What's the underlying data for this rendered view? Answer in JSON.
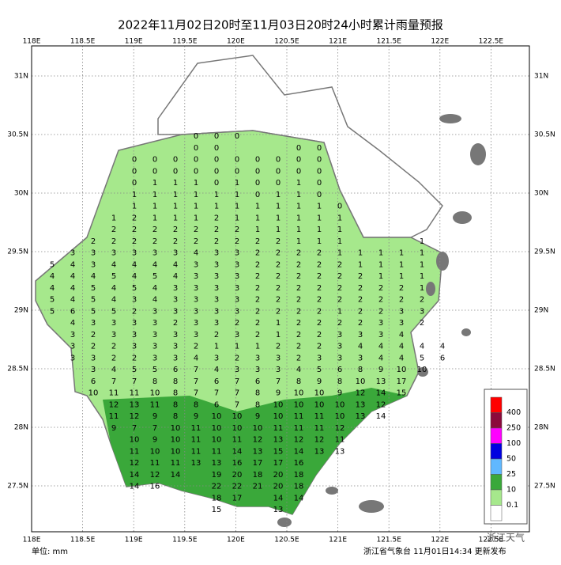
{
  "header": {
    "title": "2022年11月02日20时至11月03日20时24小时累计雨量预报"
  },
  "axes": {
    "lon": [
      "118E",
      "118.5E",
      "119E",
      "119.5E",
      "120E",
      "120.5E",
      "121E",
      "121.5E",
      "122E",
      "122.5E"
    ],
    "lat": [
      "31N",
      "30.5N",
      "30N",
      "29.5N",
      "29N",
      "28.5N",
      "28N",
      "27.5N"
    ]
  },
  "grid": {
    "rows": [
      [
        null,
        null,
        null,
        null,
        null,
        null,
        null,
        0,
        0,
        0
      ],
      [
        null,
        null,
        null,
        null,
        null,
        null,
        null,
        0,
        0,
        null,
        null,
        null,
        0,
        0
      ],
      [
        null,
        null,
        null,
        null,
        0,
        0,
        0,
        0,
        0,
        0,
        0,
        0,
        0,
        0
      ],
      [
        null,
        null,
        null,
        null,
        0,
        0,
        0,
        0,
        0,
        0,
        0,
        0,
        0,
        0
      ],
      [
        null,
        null,
        null,
        null,
        0,
        1,
        1,
        1,
        0,
        1,
        0,
        0,
        1,
        0
      ],
      [
        null,
        null,
        null,
        null,
        1,
        1,
        1,
        1,
        1,
        1,
        0,
        1,
        1,
        0
      ],
      [
        null,
        null,
        null,
        null,
        1,
        1,
        1,
        1,
        1,
        1,
        1,
        1,
        1,
        1,
        0
      ],
      [
        null,
        null,
        null,
        1,
        2,
        1,
        1,
        1,
        2,
        1,
        1,
        1,
        1,
        1,
        1
      ],
      [
        null,
        null,
        null,
        2,
        2,
        2,
        2,
        2,
        2,
        2,
        1,
        1,
        1,
        1,
        1
      ],
      [
        null,
        null,
        2,
        2,
        2,
        2,
        2,
        2,
        2,
        2,
        2,
        2,
        1,
        1,
        1,
        null,
        null,
        null,
        1
      ],
      [
        null,
        3,
        3,
        3,
        3,
        3,
        3,
        4,
        3,
        3,
        2,
        2,
        2,
        2,
        1,
        1,
        1,
        1,
        1
      ],
      [
        5,
        4,
        3,
        4,
        4,
        4,
        4,
        3,
        3,
        3,
        2,
        2,
        2,
        2,
        2,
        1,
        1,
        1,
        1
      ],
      [
        4,
        4,
        4,
        5,
        4,
        5,
        4,
        3,
        3,
        3,
        2,
        2,
        2,
        2,
        2,
        2,
        1,
        1,
        1
      ],
      [
        4,
        4,
        5,
        4,
        5,
        4,
        3,
        3,
        3,
        3,
        2,
        2,
        2,
        2,
        2,
        2,
        2,
        2,
        1
      ],
      [
        5,
        4,
        5,
        4,
        3,
        4,
        3,
        3,
        3,
        3,
        2,
        2,
        2,
        2,
        2,
        2,
        2,
        2,
        2
      ],
      [
        5,
        6,
        5,
        5,
        2,
        3,
        3,
        3,
        3,
        3,
        2,
        2,
        2,
        2,
        1,
        2,
        2,
        3,
        3
      ],
      [
        null,
        4,
        3,
        3,
        3,
        3,
        2,
        3,
        3,
        2,
        2,
        1,
        2,
        2,
        2,
        2,
        3,
        3,
        2
      ],
      [
        null,
        3,
        2,
        3,
        3,
        3,
        3,
        3,
        2,
        3,
        2,
        1,
        2,
        2,
        3,
        3,
        3,
        4
      ],
      [
        null,
        3,
        2,
        2,
        3,
        3,
        3,
        2,
        1,
        1,
        1,
        2,
        2,
        2,
        3,
        4,
        4,
        4,
        4,
        4
      ],
      [
        null,
        3,
        3,
        2,
        2,
        3,
        3,
        4,
        3,
        2,
        3,
        3,
        2,
        3,
        3,
        3,
        4,
        4,
        5,
        6
      ],
      [
        null,
        null,
        3,
        4,
        5,
        5,
        6,
        7,
        4,
        3,
        3,
        3,
        4,
        5,
        6,
        8,
        9,
        10,
        10
      ],
      [
        null,
        null,
        6,
        7,
        7,
        8,
        8,
        7,
        6,
        7,
        6,
        7,
        8,
        9,
        8,
        10,
        13,
        17
      ],
      [
        null,
        null,
        10,
        11,
        11,
        10,
        8,
        7,
        7,
        7,
        8,
        9,
        10,
        10,
        9,
        12,
        14,
        15
      ],
      [
        null,
        null,
        null,
        12,
        13,
        11,
        8,
        8,
        6,
        7,
        8,
        10,
        10,
        10,
        10,
        13,
        12
      ],
      [
        null,
        null,
        null,
        11,
        12,
        9,
        8,
        9,
        10,
        10,
        9,
        10,
        11,
        11,
        10,
        13,
        14
      ],
      [
        null,
        null,
        null,
        9,
        7,
        7,
        10,
        11,
        10,
        10,
        10,
        11,
        11,
        11,
        12
      ],
      [
        null,
        null,
        null,
        null,
        10,
        9,
        10,
        11,
        10,
        11,
        12,
        13,
        12,
        12,
        11
      ],
      [
        null,
        null,
        null,
        null,
        11,
        10,
        10,
        11,
        11,
        14,
        13,
        15,
        14,
        13,
        13
      ],
      [
        null,
        null,
        null,
        null,
        12,
        11,
        11,
        13,
        13,
        16,
        17,
        17,
        16
      ],
      [
        null,
        null,
        null,
        null,
        14,
        12,
        14,
        null,
        19,
        20,
        18,
        20,
        18
      ],
      [
        null,
        null,
        null,
        null,
        14,
        16,
        null,
        null,
        22,
        22,
        21,
        20,
        18
      ],
      [
        null,
        null,
        null,
        null,
        null,
        null,
        null,
        null,
        18,
        17,
        null,
        14,
        14
      ],
      [
        null,
        null,
        null,
        null,
        null,
        null,
        null,
        null,
        15,
        null,
        null,
        13
      ]
    ]
  },
  "legend": {
    "items": [
      {
        "label": "400",
        "color": "#ff0000"
      },
      {
        "label": "250",
        "color": "#8b0a3c"
      },
      {
        "label": "100",
        "color": "#ff00ff"
      },
      {
        "label": "50",
        "color": "#0000e0"
      },
      {
        "label": "25",
        "color": "#60b8ff"
      },
      {
        "label": "10",
        "color": "#3aa83a"
      },
      {
        "label": "0.1",
        "color": "#a6e88c"
      }
    ]
  },
  "footer": {
    "unit": "单位: mm",
    "source": "浙江省气象台 11月01日14:34 更新发布",
    "watermark": "浙江天气"
  }
}
